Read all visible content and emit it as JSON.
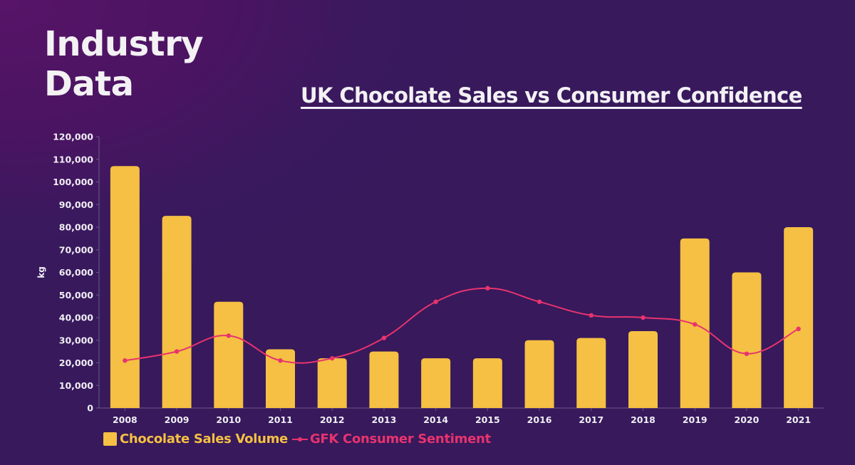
{
  "header": {
    "title_lines": [
      "Industry",
      "Data"
    ]
  },
  "colors": {
    "bars": "#F5C043",
    "line": "#E8336E",
    "axis": "#6e5a8a",
    "text": "#F0EEF3"
  },
  "chart_data": {
    "type": "bar",
    "title": "UK Chocolate Sales vs Consumer Confidence",
    "xlabel": "",
    "ylabel": "kg",
    "ylim": [
      0,
      120000
    ],
    "yticks": [
      0,
      10000,
      20000,
      30000,
      40000,
      50000,
      60000,
      70000,
      80000,
      90000,
      100000,
      110000,
      120000
    ],
    "ytick_labels": [
      "0",
      "10,000",
      "20,000",
      "30,000",
      "40,000",
      "50,000",
      "60,000",
      "70,000",
      "80,000",
      "90,000",
      "100,000",
      "110,000",
      "120,000"
    ],
    "grid": false,
    "legend_position": "bottom-left",
    "categories": [
      "2008",
      "2009",
      "2010",
      "2011",
      "2012",
      "2013",
      "2014",
      "2015",
      "2016",
      "2017",
      "2018",
      "2019",
      "2020",
      "2021"
    ],
    "series": [
      {
        "name": "Chocolate Sales Volume",
        "type": "bar",
        "values": [
          107000,
          85000,
          47000,
          26000,
          22000,
          25000,
          22000,
          22000,
          30000,
          31000,
          34000,
          75000,
          60000,
          80000
        ]
      },
      {
        "name": "GFK Consumer Sentiment",
        "type": "line",
        "smooth": true,
        "markers": true,
        "values": [
          21000,
          25000,
          32000,
          21000,
          22000,
          31000,
          47000,
          53000,
          47000,
          41000,
          40000,
          37000,
          24000,
          35000
        ]
      }
    ]
  }
}
